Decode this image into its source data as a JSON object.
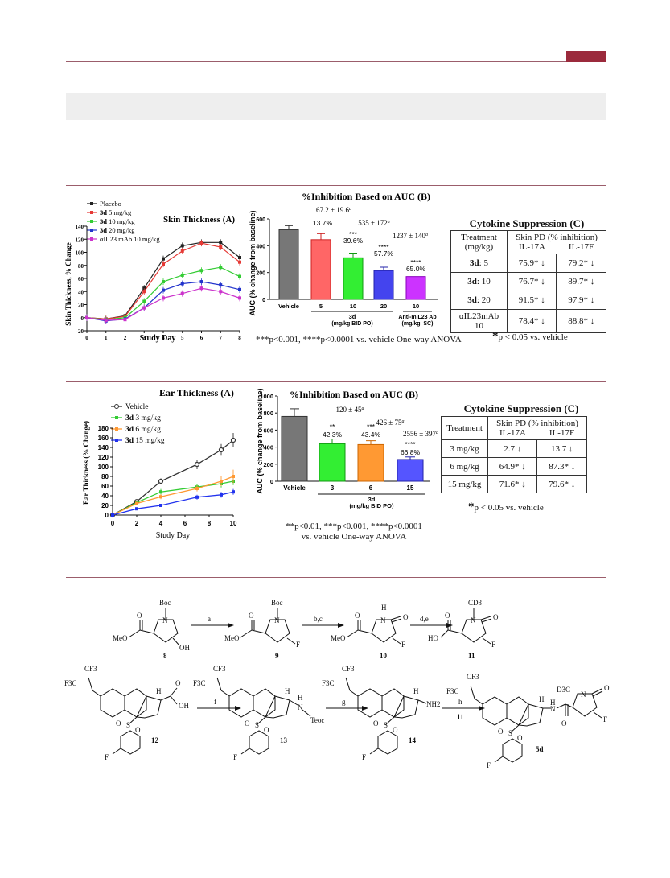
{
  "fig1": {
    "skin": {
      "title": "Skin Thickness (A)",
      "xlabel": "Study Day",
      "ylabel": "Skin Thickness, % Change",
      "legend": [
        {
          "label": "Placebo",
          "color": "#222222"
        },
        {
          "bold": "3d",
          "label": " 5 mg/kg",
          "color": "#e53935"
        },
        {
          "bold": "3d",
          "label": " 10 mg/kg",
          "color": "#33cc33"
        },
        {
          "bold": "3d",
          "label": " 20 mg/kg",
          "color": "#2233cc"
        },
        {
          "label": "αIL23 mAb 10 mg/kg",
          "color": "#cc33cc"
        }
      ],
      "xticks": [
        "0",
        "1",
        "2",
        "3",
        "4",
        "5",
        "6",
        "7",
        "8"
      ],
      "yticks": [
        "-20",
        "0",
        "20",
        "40",
        "60",
        "80",
        "100",
        "120",
        "140"
      ]
    },
    "auc": {
      "title": "%Inhibition Based on AUC (B)",
      "ylabel": "AUC (% change from baseline)",
      "yticks": [
        "0",
        "200",
        "400",
        "600"
      ],
      "cats": [
        "Vehicle",
        "5",
        "10",
        "20",
        "10"
      ],
      "group1": "3d",
      "group1_sub": "(mg/kg BID PO)",
      "group2": "Anti-mIL23 Ab",
      "group2_sub": "(mg/kg, SC)",
      "ann": [
        "67.2 ± 19.6",
        "535 ± 172",
        "1237 ± 140"
      ],
      "pct": [
        "13.7%",
        "39.6%",
        "57.7%",
        "65.0%"
      ],
      "stars": [
        "***",
        "****",
        "****"
      ],
      "foot": "***p<0.001, ****p<0.0001 vs. vehicle One-way ANOVA"
    },
    "cyto": {
      "title": "Cytokine Suppression (C)",
      "h1": "Treatment",
      "h1b": "(mg/kg)",
      "h2": "Skin PD (% inhibition)",
      "c1": "IL-17A",
      "c2": "IL-17F",
      "rows": [
        {
          "b": "3d",
          "t": ": 5",
          "a": "75.9* ↓",
          "f": "79.2* ↓"
        },
        {
          "b": "3d",
          "t": ": 10",
          "a": "76.7* ↓",
          "f": "89.7* ↓"
        },
        {
          "b": "3d",
          "t": ": 20",
          "a": "91.5* ↓",
          "f": "97.9* ↓"
        },
        {
          "b": "",
          "t": "αIL23mAb 10",
          "a": "78.4* ↓",
          "f": "88.8* ↓"
        }
      ],
      "foot": "p < 0.05 vs. vehicle"
    }
  },
  "fig2": {
    "ear": {
      "title": "Ear Thickness (A)",
      "xlabel": "Study Day",
      "ylabel": "Ear Thickness (% Change)",
      "legend": [
        {
          "label": "Vehicle",
          "color": "#333333"
        },
        {
          "bold": "3d",
          "label": " 3 mg/kg",
          "color": "#33cc33"
        },
        {
          "bold": "3d",
          "label": " 6 mg/kg",
          "color": "#ff9933"
        },
        {
          "bold": "3d",
          "label": " 15 mg/kg",
          "color": "#2233ee"
        }
      ],
      "xticks": [
        "0",
        "2",
        "4",
        "6",
        "8",
        "10"
      ],
      "yticks": [
        "0",
        "20",
        "40",
        "60",
        "80",
        "100",
        "120",
        "140",
        "160",
        "180"
      ]
    },
    "auc": {
      "title": "%Inhibition Based on AUC (B)",
      "ylabel": "AUC (% change from baseline)",
      "yticks": [
        "0",
        "200",
        "400",
        "600",
        "800",
        "1000"
      ],
      "cats": [
        "Vehicle",
        "3",
        "6",
        "15"
      ],
      "group": "3d",
      "group_sub": "(mg/kg BID PO)",
      "ann": [
        "120 ± 45",
        "426 ± 75",
        "2556 ± 397"
      ],
      "pct": [
        "42.3%",
        "43.4%",
        "66.8%"
      ],
      "stars": [
        "**",
        "***",
        "****"
      ],
      "foot1": "**p<0.01, ***p<0.001, ****p<0.0001",
      "foot2": "vs. vehicle One-way ANOVA"
    },
    "cyto": {
      "title": "Cytokine Suppression (C)",
      "h1": "Treatment",
      "h2": "Skin PD (% inhibition)",
      "c1": "IL-17A",
      "c2": "IL-17F",
      "rows": [
        {
          "t": "3 mg/kg",
          "a": "2.7 ↓",
          "f": "13.7 ↓"
        },
        {
          "t": "6 mg/kg",
          "a": "64.9* ↓",
          "f": "87.3* ↓"
        },
        {
          "t": "15 mg/kg",
          "a": "71.6* ↓",
          "f": "79.6* ↓"
        }
      ],
      "foot": "p < 0.05 vs. vehicle"
    }
  },
  "scheme": {
    "steps": [
      "a",
      "b,c",
      "d,e",
      "f",
      "g",
      "h"
    ],
    "h_reagent": "11",
    "compounds": [
      "8",
      "9",
      "10",
      "11",
      "12",
      "13",
      "14",
      "5d"
    ],
    "labels": {
      "boc": "Boc",
      "meo": "MeO",
      "oh": "OH",
      "f": "F",
      "h": "H",
      "cd3": "CD3",
      "d3c": "D3C",
      "o": "O",
      "ho": "HO",
      "n": "N",
      "cf3": "CF3",
      "f3c": "F3C",
      "s": "S",
      "teoc": "Teoc",
      "nh2": "NH2"
    }
  },
  "chart_data": [
    {
      "type": "line",
      "title": "Skin Thickness (A)",
      "xlabel": "Study Day",
      "ylabel": "Skin Thickness, % Change",
      "x": [
        0,
        1,
        2,
        3,
        4,
        5,
        6,
        7,
        8
      ],
      "ylim": [
        -20,
        140
      ],
      "series": [
        {
          "name": "Placebo",
          "values": [
            0,
            -2,
            3,
            45,
            90,
            110,
            115,
            115,
            92
          ]
        },
        {
          "name": "3d 5 mg/kg",
          "values": [
            0,
            -2,
            2,
            40,
            82,
            102,
            114,
            108,
            85
          ]
        },
        {
          "name": "3d 10 mg/kg",
          "values": [
            0,
            -3,
            0,
            25,
            55,
            65,
            72,
            77,
            63
          ]
        },
        {
          "name": "3d 20 mg/kg",
          "values": [
            0,
            -5,
            -2,
            15,
            42,
            52,
            55,
            50,
            43
          ]
        },
        {
          "name": "αIL23 mAb 10 mg/kg",
          "values": [
            0,
            -4,
            -3,
            15,
            30,
            37,
            45,
            40,
            30
          ]
        }
      ]
    },
    {
      "type": "bar",
      "title": "%Inhibition Based on AUC (B)",
      "ylabel": "AUC (% change from baseline)",
      "categories": [
        "Vehicle",
        "5",
        "10",
        "20",
        "10"
      ],
      "values": [
        520,
        445,
        310,
        215,
        170
      ],
      "errors": [
        30,
        45,
        35,
        25,
        0
      ],
      "ylim": [
        0,
        600
      ]
    },
    {
      "type": "line",
      "title": "Ear Thickness (A)",
      "xlabel": "Study Day",
      "ylabel": "Ear Thickness (% Change)",
      "x": [
        0,
        2,
        4,
        7,
        9,
        10
      ],
      "ylim": [
        0,
        180
      ],
      "series": [
        {
          "name": "Vehicle",
          "values": [
            0,
            28,
            70,
            105,
            135,
            155
          ]
        },
        {
          "name": "3d 3 mg/kg",
          "values": [
            0,
            26,
            48,
            58,
            65,
            70
          ]
        },
        {
          "name": "3d 6 mg/kg",
          "values": [
            0,
            24,
            38,
            55,
            70,
            80
          ]
        },
        {
          "name": "3d 15 mg/kg",
          "values": [
            0,
            13,
            20,
            37,
            42,
            48
          ]
        }
      ]
    },
    {
      "type": "bar",
      "title": "%Inhibition Based on AUC (B)",
      "ylabel": "AUC (% change from baseline)",
      "categories": [
        "Vehicle",
        "3",
        "6",
        "15"
      ],
      "values": [
        760,
        440,
        430,
        255
      ],
      "errors": [
        90,
        55,
        45,
        30
      ],
      "ylim": [
        0,
        1000
      ]
    }
  ]
}
